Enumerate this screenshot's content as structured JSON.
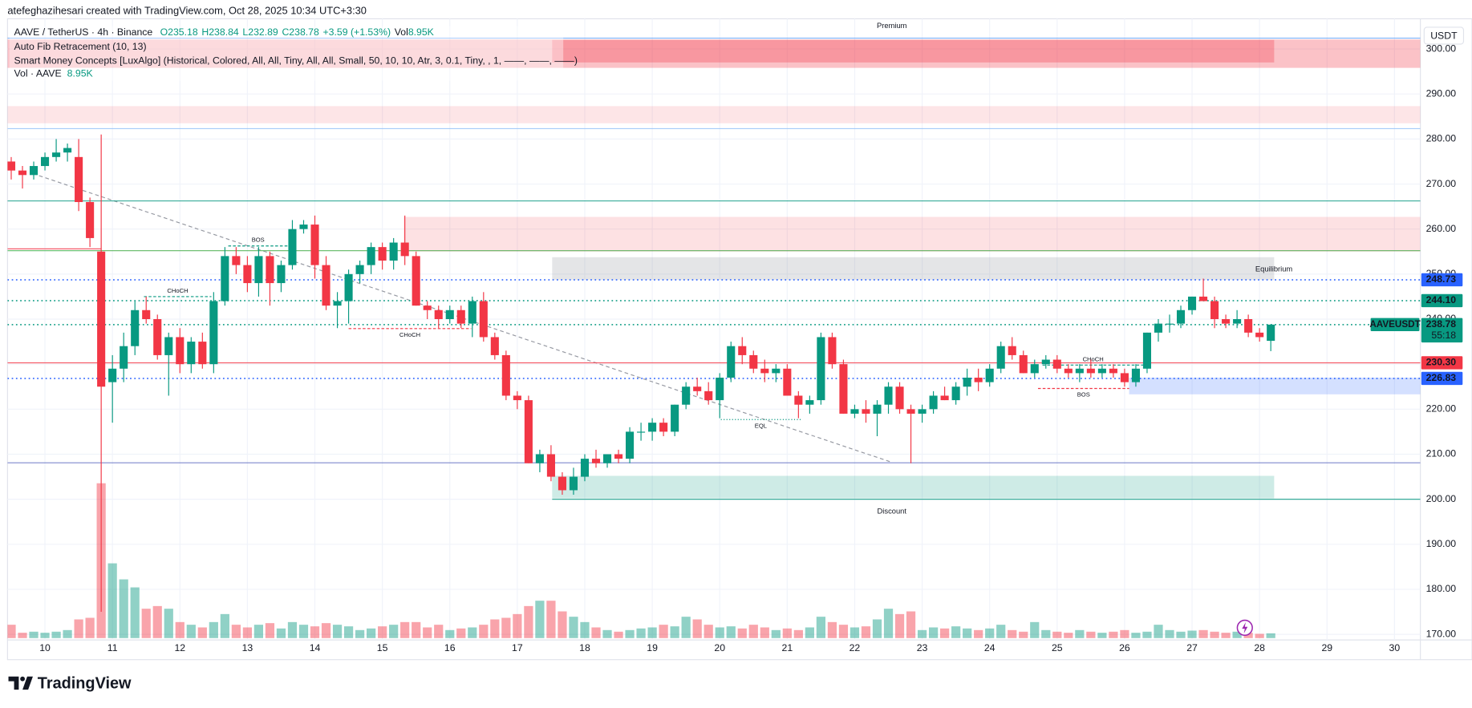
{
  "header": "atefeghazihesari created with TradingView.com, Oct 28, 2025 10:34 UTC+3:30",
  "brand": "TradingView",
  "chart_data": {
    "type": "candlestick",
    "legend": {
      "symbol": "AAVE / TetherUS · 4h · Binance",
      "open": "O235.18",
      "high": "H238.84",
      "low": "L232.89",
      "close": "C238.78",
      "change": "+3.59 (+1.53%)",
      "vol_label": "Vol",
      "vol": "8.95K"
    },
    "indicators": [
      "Auto Fib Retracement (10, 13)",
      "Smart Money Concepts [LuxAlgo] (Historical, Colored, All, All, Tiny, All, All, Small, 50, 10, 10, Atr, 3, 0.1, Tiny, , 1, ——, ——, ——)"
    ],
    "volume_legend": {
      "name": "Vol · AAVE",
      "value": "8.95K"
    },
    "currency": "USDT",
    "up_color": "#089981",
    "down_color": "#f23645",
    "grid": true,
    "ylim": [
      168.75,
      306.7
    ],
    "yticks": [
      {
        "value": 170,
        "label": "170.00"
      },
      {
        "value": 180,
        "label": "180.00"
      },
      {
        "value": 190,
        "label": "190.00"
      },
      {
        "value": 200,
        "label": "200.00"
      },
      {
        "value": 210,
        "label": "210.00"
      },
      {
        "value": 220,
        "label": "220.00"
      },
      {
        "value": 230,
        "label": "230.00"
      },
      {
        "value": 240,
        "label": "240.00"
      },
      {
        "value": 250,
        "label": "250.00"
      },
      {
        "value": 260,
        "label": "260.00"
      },
      {
        "value": 270,
        "label": "270.00"
      },
      {
        "value": 280,
        "label": "280.00"
      },
      {
        "value": 290,
        "label": "290.00"
      },
      {
        "value": 300,
        "label": "300.00"
      }
    ],
    "xlim": [
      -0.33,
      125.3
    ],
    "xticks": [
      {
        "value": 3,
        "label": "10"
      },
      {
        "value": 9,
        "label": "11"
      },
      {
        "value": 15,
        "label": "12"
      },
      {
        "value": 21,
        "label": "13"
      },
      {
        "value": 27,
        "label": "14"
      },
      {
        "value": 33,
        "label": "15"
      },
      {
        "value": 39,
        "label": "16"
      },
      {
        "value": 45,
        "label": "17"
      },
      {
        "value": 51,
        "label": "18"
      },
      {
        "value": 57,
        "label": "19"
      },
      {
        "value": 63,
        "label": "20"
      },
      {
        "value": 69,
        "label": "21"
      },
      {
        "value": 75,
        "label": "22"
      },
      {
        "value": 81,
        "label": "23"
      },
      {
        "value": 87,
        "label": "24"
      },
      {
        "value": 93,
        "label": "25"
      },
      {
        "value": 99,
        "label": "26"
      },
      {
        "value": 105,
        "label": "27"
      },
      {
        "value": 111,
        "label": "28"
      },
      {
        "value": 117,
        "label": "29"
      },
      {
        "value": 123,
        "label": "30"
      }
    ],
    "candles": [
      [
        275,
        276,
        271,
        273
      ],
      [
        273,
        274,
        269,
        272
      ],
      [
        272,
        275,
        271,
        274
      ],
      [
        274,
        277,
        273,
        276
      ],
      [
        276,
        280,
        275,
        277
      ],
      [
        277,
        279,
        275,
        278
      ],
      [
        276,
        280,
        264,
        266
      ],
      [
        266,
        267,
        256,
        258
      ],
      [
        255,
        281,
        175,
        225
      ],
      [
        226,
        232,
        217,
        229
      ],
      [
        229,
        237,
        226,
        234
      ],
      [
        234,
        244,
        232,
        242
      ],
      [
        242,
        245,
        239,
        240
      ],
      [
        240,
        241,
        231,
        232
      ],
      [
        232,
        237,
        223,
        236
      ],
      [
        236,
        238,
        228,
        230
      ],
      [
        230,
        236,
        228,
        235
      ],
      [
        235,
        237,
        229,
        230
      ],
      [
        230,
        246,
        228,
        244
      ],
      [
        244,
        256,
        243,
        254
      ],
      [
        254,
        256,
        250,
        252
      ],
      [
        252,
        254,
        246,
        248
      ],
      [
        248,
        256,
        245,
        254
      ],
      [
        254,
        255,
        243,
        248
      ],
      [
        248,
        253,
        246,
        252
      ],
      [
        252,
        262,
        251,
        260
      ],
      [
        260,
        262,
        259,
        261
      ],
      [
        261,
        263,
        249,
        252
      ],
      [
        252,
        254,
        242,
        243
      ],
      [
        243,
        246,
        238,
        244
      ],
      [
        244,
        251,
        239,
        250
      ],
      [
        250,
        253,
        248,
        252
      ],
      [
        252,
        257,
        250,
        256
      ],
      [
        256,
        257,
        251,
        253
      ],
      [
        253,
        258,
        251,
        257
      ],
      [
        257,
        263,
        252,
        254
      ],
      [
        254,
        255,
        243,
        243
      ],
      [
        243,
        244,
        240,
        242
      ],
      [
        242,
        243,
        238,
        240
      ],
      [
        240,
        243,
        239,
        242
      ],
      [
        242,
        243,
        238,
        239
      ],
      [
        239,
        245,
        236,
        244
      ],
      [
        244,
        246,
        235,
        236
      ],
      [
        236,
        237,
        231,
        232
      ],
      [
        232,
        233,
        222,
        223
      ],
      [
        223,
        224,
        220,
        222
      ],
      [
        222,
        223,
        208,
        208
      ],
      [
        208,
        211,
        206,
        210
      ],
      [
        210,
        212,
        204,
        205
      ],
      [
        205,
        206,
        201,
        202
      ],
      [
        202,
        207,
        201,
        205
      ],
      [
        205,
        210,
        204,
        209
      ],
      [
        209,
        211,
        207,
        208
      ],
      [
        208,
        210,
        207,
        210
      ],
      [
        210,
        211,
        208,
        209
      ],
      [
        209,
        216,
        208,
        215
      ],
      [
        215,
        217,
        213,
        215
      ],
      [
        215,
        218,
        213,
        217
      ],
      [
        217,
        218,
        214,
        215
      ],
      [
        215,
        221,
        214,
        221
      ],
      [
        221,
        226,
        220,
        225
      ],
      [
        225,
        227,
        223,
        224
      ],
      [
        224,
        226,
        221,
        222
      ],
      [
        222,
        228,
        218,
        227
      ],
      [
        227,
        235,
        226,
        234
      ],
      [
        234,
        236,
        230,
        232
      ],
      [
        232,
        233,
        228,
        229
      ],
      [
        229,
        231,
        226,
        228
      ],
      [
        228,
        230,
        226,
        229
      ],
      [
        229,
        230,
        223,
        223
      ],
      [
        223,
        224,
        218,
        221
      ],
      [
        221,
        223,
        219,
        222
      ],
      [
        222,
        237,
        221,
        236
      ],
      [
        236,
        237,
        229,
        230
      ],
      [
        230,
        231,
        219,
        219
      ],
      [
        219,
        221,
        218,
        220
      ],
      [
        220,
        222,
        217,
        219
      ],
      [
        219,
        222,
        214,
        221
      ],
      [
        221,
        226,
        219,
        225
      ],
      [
        225,
        226,
        219,
        220
      ],
      [
        220,
        221,
        208,
        219
      ],
      [
        219,
        221,
        217,
        220
      ],
      [
        220,
        224,
        219,
        223
      ],
      [
        223,
        225,
        222,
        222
      ],
      [
        222,
        226,
        221,
        225
      ],
      [
        225,
        229,
        223,
        227
      ],
      [
        227,
        229,
        224,
        226
      ],
      [
        226,
        230,
        225,
        229
      ],
      [
        229,
        235,
        228,
        234
      ],
      [
        234,
        236,
        231,
        232
      ],
      [
        232,
        233,
        228,
        228
      ],
      [
        228,
        231,
        227,
        230
      ],
      [
        230,
        232,
        229,
        231
      ],
      [
        231,
        232,
        228,
        229
      ],
      [
        229,
        230,
        227,
        228
      ],
      [
        228,
        230,
        226,
        229
      ],
      [
        229,
        231,
        227,
        228
      ],
      [
        228,
        230,
        227,
        229
      ],
      [
        229,
        230,
        227,
        228
      ],
      [
        228,
        229,
        225,
        226
      ],
      [
        226,
        230,
        225,
        229
      ],
      [
        229,
        237,
        228,
        237
      ],
      [
        237,
        240,
        235,
        239
      ],
      [
        239,
        241,
        237,
        239
      ],
      [
        239,
        243,
        238,
        242
      ],
      [
        242,
        245,
        241,
        245
      ],
      [
        245,
        249,
        244,
        244
      ],
      [
        244,
        245,
        238,
        240
      ],
      [
        240,
        241,
        238,
        239
      ],
      [
        239,
        242,
        238,
        240
      ],
      [
        240,
        241,
        236,
        237
      ],
      [
        237,
        238,
        235,
        236
      ],
      [
        235.18,
        238.84,
        232.89,
        238.78
      ]
    ],
    "volume": [
      25,
      10,
      12,
      10,
      12,
      15,
      35,
      38,
      290,
      140,
      110,
      95,
      55,
      60,
      55,
      30,
      25,
      20,
      30,
      45,
      25,
      20,
      25,
      28,
      18,
      30,
      25,
      22,
      28,
      25,
      22,
      15,
      18,
      22,
      25,
      30,
      30,
      20,
      25,
      15,
      18,
      20,
      25,
      35,
      38,
      45,
      60,
      70,
      70,
      50,
      40,
      30,
      20,
      15,
      12,
      15,
      18,
      20,
      25,
      22,
      40,
      35,
      25,
      20,
      22,
      18,
      25,
      20,
      15,
      18,
      15,
      20,
      40,
      30,
      25,
      20,
      22,
      35,
      55,
      45,
      50,
      15,
      20,
      18,
      22,
      18,
      15,
      18,
      25,
      15,
      12,
      30,
      15,
      12,
      10,
      15,
      12,
      10,
      12,
      15,
      10,
      12,
      25,
      15,
      12,
      14,
      15,
      12,
      10,
      12,
      10,
      8,
      8.95
    ],
    "zones": [
      {
        "from": -0.33,
        "to": 125.3,
        "top": 302.1,
        "bottom": 295.8,
        "color": "#f23645",
        "opacity": 0.3
      },
      {
        "from": 48.1,
        "to": 112.3,
        "top": 302,
        "bottom": 297,
        "color": "#f23645",
        "opacity": 0.3
      },
      {
        "from": -0.33,
        "to": 125.3,
        "top": 287.3,
        "bottom": 283.5,
        "color": "#f23645",
        "opacity": 0.13
      },
      {
        "from": 34.9,
        "to": 125.3,
        "top": 262.7,
        "bottom": 255,
        "color": "#f23645",
        "opacity": 0.15
      },
      {
        "from": 48.1,
        "to": 112.3,
        "top": 253.75,
        "bottom": 248.75,
        "color": "#787b86",
        "opacity": 0.2
      },
      {
        "from": 99.4,
        "to": 125.3,
        "top": 227,
        "bottom": 223.3,
        "color": "#2962ff",
        "opacity": 0.2
      },
      {
        "from": 48.1,
        "to": 112.3,
        "top": 205.2,
        "bottom": 200.2,
        "color": "#089981",
        "opacity": 0.2
      }
    ],
    "levels": [
      {
        "value": 302.4,
        "from": -0.33,
        "to": 125.3,
        "color": "#5b9cf6",
        "style": "solid"
      },
      {
        "value": 282.3,
        "from": -0.33,
        "to": 125.3,
        "color": "#90bff9",
        "style": "solid"
      },
      {
        "value": 266.25,
        "from": -0.33,
        "to": 125.3,
        "color": "#089981",
        "style": "solid"
      },
      {
        "value": 255.6,
        "from": -0.33,
        "to": 8,
        "color": "#f23645",
        "style": "solid"
      },
      {
        "value": 255.2,
        "from": -0.33,
        "to": 125.3,
        "color": "#4caf50",
        "style": "solid"
      },
      {
        "value": 248.73,
        "label": "248.73",
        "from": -0.33,
        "to": 125.3,
        "color": "#2962ff",
        "style": "dotted"
      },
      {
        "value": 244.1,
        "label": "244.10",
        "from": -0.33,
        "to": 125.3,
        "color": "#089981",
        "style": "dotted"
      },
      {
        "value": 238.78,
        "label": "238.78",
        "from": -0.33,
        "to": 125.3,
        "color": "#089981",
        "style": "dotted"
      },
      {
        "value": 230.3,
        "label": "230.30",
        "from": -0.33,
        "to": 125.3,
        "color": "#f23645",
        "style": "solid"
      },
      {
        "value": 226.83,
        "label": "226.83",
        "from": -0.33,
        "to": 125.3,
        "color": "#2962ff",
        "style": "dotted"
      },
      {
        "value": 208.1,
        "from": -0.33,
        "to": 125.3,
        "color": "#5c6bc0",
        "style": "solid"
      },
      {
        "value": 200,
        "from": 48.1,
        "to": 125.3,
        "color": "#089981",
        "style": "solid"
      }
    ],
    "symbol_tag": "AAVEUSDT",
    "countdown": "55:18",
    "structures": [
      {
        "label": "BOS",
        "value": 256.25,
        "from": 19.3,
        "to": 24.6,
        "color": "#089981",
        "side": "above"
      },
      {
        "label": "CHoCH",
        "value": 245,
        "from": 11.8,
        "to": 17.8,
        "color": "#089981",
        "side": "above"
      },
      {
        "label": "CHoCH",
        "value": 237.9,
        "from": 30,
        "to": 40.9,
        "color": "#f23645",
        "side": "below"
      },
      {
        "label": "EQL",
        "value": 217.7,
        "from": 63.1,
        "to": 70.2,
        "color": "#089981",
        "side": "below"
      },
      {
        "label": "CHoCH",
        "value": 229.8,
        "from": 91.7,
        "to": 100.7,
        "color": "#089981",
        "side": "above"
      },
      {
        "label": "BOS",
        "value": 224.6,
        "from": 91.3,
        "to": 99.4,
        "color": "#f23645",
        "side": "below"
      }
    ],
    "zone_labels": {
      "premium": "Premium",
      "equilibrium": "Equilibrium",
      "discount": "Discount"
    }
  }
}
